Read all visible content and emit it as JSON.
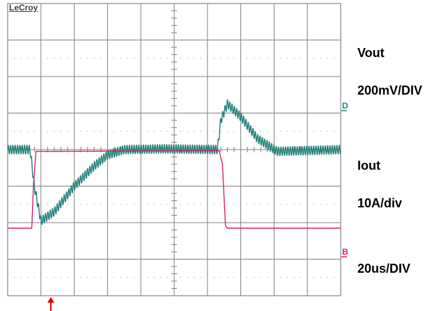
{
  "brand": "LeCroy",
  "labels": {
    "vout": "Vout",
    "vout_scale": "200mV/DIV",
    "iout": "Iout",
    "iout_scale": "10A/div",
    "time_scale": "20us/DIV"
  },
  "markers": {
    "channel_d": "D",
    "channel_b": "B"
  },
  "colors": {
    "vout_trace": "#1f7f78",
    "iout_trace": "#e01a6e",
    "trigger_marker": "#e00000",
    "grid": "#7f7f7f",
    "dots": "#9a9a9a"
  },
  "chart_data": {
    "type": "line",
    "title": "",
    "xlabel": "",
    "ylabel": "",
    "grid": true,
    "divisions": {
      "x": 10,
      "y": 8
    },
    "x_unit": "us",
    "x_per_div": 20,
    "xlim": [
      0,
      200
    ],
    "trigger_x": 13,
    "series": [
      {
        "name": "Vout",
        "scale": "200mV/DIV",
        "y_unit": "div",
        "ripple_amplitude_div": 0.12,
        "ripple_period_us": 1.4,
        "points": [
          [
            0,
            4.0
          ],
          [
            13.5,
            4.0
          ],
          [
            16,
            3.0
          ],
          [
            20,
            2.05
          ],
          [
            28,
            2.3
          ],
          [
            40,
            3.0
          ],
          [
            52,
            3.55
          ],
          [
            60,
            3.85
          ],
          [
            70,
            4.0
          ],
          [
            95,
            4.02
          ],
          [
            126,
            4.0
          ],
          [
            128,
            4.8
          ],
          [
            132,
            5.25
          ],
          [
            140,
            4.9
          ],
          [
            150,
            4.3
          ],
          [
            162,
            3.95
          ],
          [
            200,
            4.0
          ]
        ]
      },
      {
        "name": "Iout",
        "scale": "10A/div",
        "y_unit": "div",
        "points": [
          [
            0,
            1.85
          ],
          [
            14.5,
            1.85
          ],
          [
            15.5,
            3.05
          ],
          [
            17,
            3.95
          ],
          [
            127,
            3.97
          ],
          [
            129,
            3.6
          ],
          [
            130.8,
            1.92
          ],
          [
            132,
            1.85
          ],
          [
            200,
            1.85
          ]
        ]
      }
    ]
  }
}
